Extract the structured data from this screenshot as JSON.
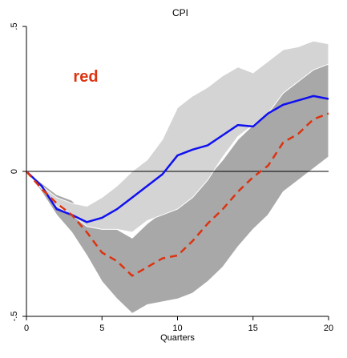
{
  "chart_data": {
    "type": "line",
    "title": "CPI",
    "xlabel": "Quarters",
    "ylabel": "",
    "xlim": [
      0,
      20
    ],
    "ylim": [
      -0.5,
      0.5
    ],
    "x_ticks": [
      0,
      5,
      10,
      15,
      20
    ],
    "y_ticks": [
      {
        "value": -0.5,
        "label": "-.5"
      },
      {
        "value": 0,
        "label": "0"
      },
      {
        "value": 0.5,
        "label": ".5"
      }
    ],
    "grid": false,
    "zero_line": true,
    "annotation": {
      "text": "red",
      "color": "#dc3310",
      "x": 3.1,
      "y": 0.31
    },
    "x": [
      0,
      1,
      2,
      3,
      4,
      5,
      6,
      7,
      8,
      9,
      10,
      11,
      12,
      13,
      14,
      15,
      16,
      17,
      18,
      19,
      20
    ],
    "bands": [
      {
        "color": "#a8a8a8",
        "lower": [
          0,
          -0.07,
          -0.15,
          -0.21,
          -0.29,
          -0.38,
          -0.44,
          -0.49,
          -0.46,
          -0.45,
          -0.44,
          -0.42,
          -0.38,
          -0.33,
          -0.26,
          -0.2,
          -0.15,
          -0.07,
          -0.03,
          0.01,
          0.05
        ],
        "upper": [
          0,
          -0.04,
          -0.08,
          -0.1,
          -0.15,
          -0.18,
          -0.2,
          -0.23,
          -0.18,
          -0.14,
          -0.12,
          -0.08,
          -0.02,
          0.04,
          0.11,
          0.16,
          0.21,
          0.27,
          0.31,
          0.36,
          0.37
        ]
      },
      {
        "color": "#d4d4d4",
        "lower": [
          0,
          -0.06,
          -0.12,
          -0.15,
          -0.19,
          -0.2,
          -0.2,
          -0.21,
          -0.17,
          -0.15,
          -0.13,
          -0.09,
          -0.03,
          0.05,
          0.12,
          0.16,
          0.2,
          0.27,
          0.31,
          0.35,
          0.37
        ],
        "upper": [
          0,
          -0.05,
          -0.09,
          -0.11,
          -0.12,
          -0.09,
          -0.05,
          0.0,
          0.04,
          0.11,
          0.22,
          0.26,
          0.29,
          0.33,
          0.36,
          0.34,
          0.38,
          0.42,
          0.43,
          0.45,
          0.44
        ]
      }
    ],
    "series": [
      {
        "color": "#1010f0",
        "style": "solid",
        "values": [
          0,
          -0.05,
          -0.13,
          -0.15,
          -0.175,
          -0.16,
          -0.13,
          -0.09,
          -0.05,
          -0.01,
          0.055,
          0.075,
          0.09,
          0.125,
          0.16,
          0.155,
          0.2,
          0.23,
          0.245,
          0.26,
          0.25
        ]
      },
      {
        "color": "#dc3310",
        "style": "dashed",
        "values": [
          0,
          -0.06,
          -0.11,
          -0.15,
          -0.21,
          -0.28,
          -0.31,
          -0.36,
          -0.33,
          -0.3,
          -0.29,
          -0.24,
          -0.18,
          -0.13,
          -0.07,
          -0.02,
          0.02,
          0.1,
          0.13,
          0.18,
          0.2
        ]
      }
    ]
  }
}
